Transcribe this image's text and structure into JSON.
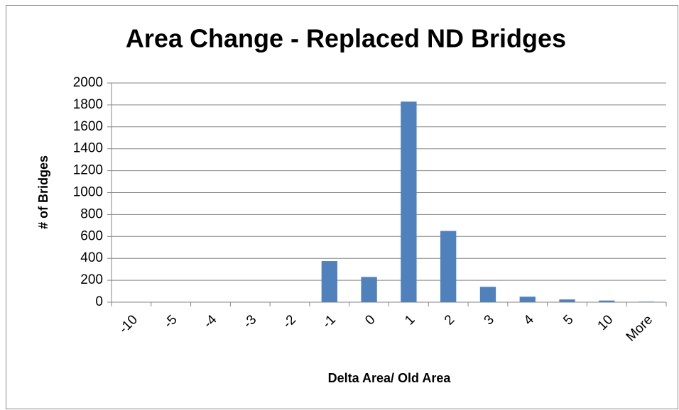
{
  "chart_data": {
    "type": "bar",
    "title": "Area Change - Replaced ND Bridges",
    "x_label": "Delta Area/ Old Area",
    "y_label": "# of Bridges",
    "categories": [
      "-10",
      "-5",
      "-4",
      "-3",
      "-2",
      "-1",
      "0",
      "1",
      "2",
      "3",
      "4",
      "5",
      "10",
      "More"
    ],
    "values": [
      0,
      0,
      0,
      0,
      0,
      375,
      230,
      1830,
      650,
      140,
      50,
      25,
      15,
      5
    ],
    "color": "#4f81bd",
    "ylim": [
      0,
      2000
    ],
    "yticks": [
      0,
      200,
      400,
      600,
      800,
      1000,
      1200,
      1400,
      1600,
      1800,
      2000
    ],
    "grid": true
  }
}
